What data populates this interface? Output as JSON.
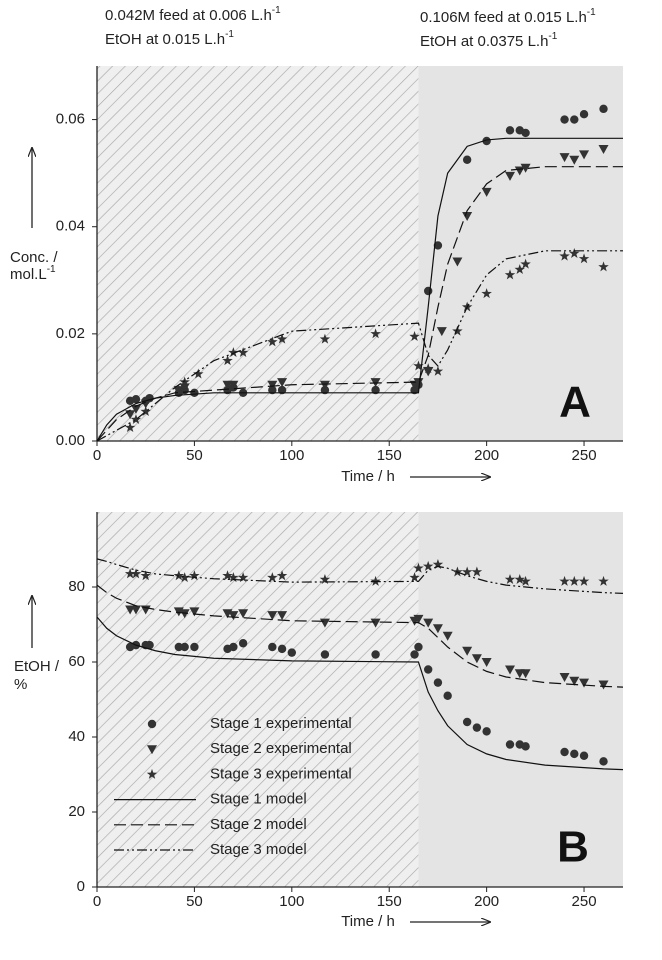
{
  "chart_data": [
    {
      "type": "scatter",
      "annotations": [
        [
          {
            "text": "0.042M feed at 0.006 L.h",
            "sup": "-1"
          },
          {
            "text": "EtOH at 0.015 L.h",
            "sup": "-1"
          }
        ],
        [
          {
            "text": "0.106M feed at 0.015 L.h",
            "sup": "-1"
          },
          {
            "text": "EtOH at 0.0375 L.h",
            "sup": "-1"
          }
        ]
      ],
      "panel_label": "A",
      "xlabel": "Time / h",
      "ylabel": [
        {
          "text": "Conc. /"
        },
        {
          "text": "mol.L",
          "sup": "-1"
        }
      ],
      "xlim": [
        0,
        270
      ],
      "xticks": [
        0,
        50,
        100,
        150,
        200,
        250
      ],
      "ylim": [
        0,
        0.07
      ],
      "yticks": [
        {
          "value": 0,
          "label": "0.00"
        },
        0.02,
        0.04,
        0.06
      ],
      "shaded_regions": [
        {
          "xlim": [
            0,
            165
          ],
          "pattern": "hatch"
        },
        {
          "xlim": [
            165,
            270
          ],
          "pattern": "gray"
        }
      ],
      "series": [
        {
          "kind": "scatter",
          "marker": "circle",
          "color": "#333333",
          "x": [
            17,
            20,
            25,
            27,
            42,
            45,
            50,
            67,
            70,
            75,
            90,
            95,
            117,
            143,
            163,
            165,
            170,
            175,
            190,
            200,
            212,
            217,
            220,
            240,
            245,
            250,
            260
          ],
          "values": [
            0.0075,
            0.0078,
            0.0075,
            0.008,
            0.009,
            0.0095,
            0.009,
            0.0095,
            0.01,
            0.009,
            0.0095,
            0.0095,
            0.0095,
            0.0095,
            0.0095,
            0.0105,
            0.028,
            0.0365,
            0.0525,
            0.056,
            0.058,
            0.058,
            0.0575,
            0.06,
            0.06,
            0.061,
            0.062
          ]
        },
        {
          "kind": "scatter",
          "marker": "triangle",
          "color": "#333333",
          "x": [
            17,
            20,
            25,
            42,
            45,
            67,
            70,
            90,
            95,
            117,
            143,
            163,
            165,
            170,
            177,
            185,
            190,
            200,
            212,
            217,
            220,
            240,
            245,
            250,
            260
          ],
          "values": [
            0.005,
            0.006,
            0.007,
            0.0095,
            0.01,
            0.0105,
            0.0105,
            0.0105,
            0.011,
            0.0105,
            0.011,
            0.0105,
            0.011,
            0.013,
            0.0205,
            0.0335,
            0.042,
            0.0465,
            0.0495,
            0.0505,
            0.051,
            0.053,
            0.0525,
            0.0535,
            0.0545
          ]
        },
        {
          "kind": "scatter",
          "marker": "star",
          "color": "#333333",
          "x": [
            17,
            20,
            25,
            42,
            45,
            52,
            67,
            70,
            75,
            90,
            95,
            117,
            143,
            163,
            165,
            170,
            175,
            185,
            190,
            200,
            212,
            217,
            220,
            240,
            245,
            250,
            260
          ],
          "values": [
            0.0025,
            0.004,
            0.0055,
            0.0095,
            0.011,
            0.0125,
            0.015,
            0.0165,
            0.0165,
            0.0185,
            0.019,
            0.019,
            0.02,
            0.0195,
            0.014,
            0.0135,
            0.013,
            0.0205,
            0.025,
            0.0275,
            0.031,
            0.032,
            0.033,
            0.0345,
            0.035,
            0.034,
            0.0325
          ]
        },
        {
          "kind": "line",
          "dash": "solid",
          "color": "#111111",
          "x": [
            0,
            5,
            10,
            20,
            30,
            40,
            60,
            100,
            165,
            170,
            175,
            180,
            190,
            200,
            210,
            230,
            260,
            270
          ],
          "values": [
            0,
            0.003,
            0.005,
            0.007,
            0.008,
            0.0085,
            0.009,
            0.009,
            0.009,
            0.025,
            0.042,
            0.05,
            0.055,
            0.0562,
            0.0565,
            0.0565,
            0.0565,
            0.0565
          ]
        },
        {
          "kind": "line",
          "dash": "dashed",
          "color": "#111111",
          "x": [
            0,
            5,
            10,
            20,
            30,
            40,
            60,
            100,
            165,
            170,
            175,
            180,
            190,
            200,
            210,
            230,
            260,
            270
          ],
          "values": [
            0,
            0.002,
            0.004,
            0.0065,
            0.008,
            0.009,
            0.0095,
            0.0105,
            0.011,
            0.016,
            0.025,
            0.033,
            0.043,
            0.048,
            0.0505,
            0.0512,
            0.0512,
            0.0512
          ]
        },
        {
          "kind": "line",
          "dash": "dashdotdot",
          "color": "#111111",
          "x": [
            0,
            5,
            10,
            20,
            30,
            40,
            60,
            100,
            165,
            170,
            175,
            180,
            190,
            200,
            210,
            230,
            260,
            270
          ],
          "values": [
            0,
            0.001,
            0.002,
            0.004,
            0.007,
            0.01,
            0.015,
            0.0205,
            0.022,
            0.016,
            0.014,
            0.017,
            0.025,
            0.031,
            0.034,
            0.0355,
            0.0355,
            0.0355
          ]
        }
      ]
    },
    {
      "type": "scatter",
      "panel_label": "B",
      "xlabel": "Time / h",
      "ylabel": [
        {
          "text": "EtOH /"
        },
        {
          "text": "%"
        }
      ],
      "xlim": [
        0,
        270
      ],
      "xticks": [
        0,
        50,
        100,
        150,
        200,
        250
      ],
      "ylim": [
        0,
        100
      ],
      "yticks": [
        0,
        20,
        40,
        60,
        80
      ],
      "shaded_regions": [
        {
          "xlim": [
            0,
            165
          ],
          "pattern": "hatch"
        },
        {
          "xlim": [
            165,
            270
          ],
          "pattern": "gray"
        }
      ],
      "legend": "lower left",
      "series": [
        {
          "name": "Stage 1 experimental",
          "kind": "scatter",
          "marker": "circle",
          "color": "#333333",
          "x": [
            17,
            20,
            25,
            27,
            42,
            45,
            50,
            67,
            70,
            75,
            90,
            95,
            100,
            117,
            143,
            163,
            165,
            170,
            175,
            180,
            190,
            195,
            200,
            212,
            217,
            220,
            240,
            245,
            250,
            260
          ],
          "values": [
            64,
            64.5,
            64.5,
            64.5,
            64,
            64,
            64,
            63.5,
            64,
            65,
            64,
            63.5,
            62.5,
            62,
            62,
            62,
            64,
            58,
            54.5,
            51,
            44,
            42.5,
            41.5,
            38,
            38,
            37.5,
            36,
            35.5,
            35,
            33.5
          ]
        },
        {
          "name": "Stage 2 experimental",
          "kind": "scatter",
          "marker": "triangle",
          "color": "#333333",
          "x": [
            17,
            20,
            25,
            42,
            45,
            50,
            67,
            70,
            75,
            90,
            95,
            117,
            143,
            163,
            165,
            170,
            175,
            180,
            190,
            195,
            200,
            212,
            217,
            220,
            240,
            245,
            250,
            260
          ],
          "values": [
            74,
            74,
            74,
            73.5,
            73,
            73.5,
            73,
            72.5,
            73,
            72.5,
            72.5,
            70.5,
            70.5,
            71,
            71.5,
            70.5,
            69,
            67,
            63,
            61,
            60,
            58,
            57,
            57,
            56,
            55,
            54.5,
            54
          ]
        },
        {
          "name": "Stage 3 experimental",
          "kind": "scatter",
          "marker": "star",
          "color": "#333333",
          "x": [
            17,
            20,
            25,
            42,
            45,
            50,
            67,
            70,
            75,
            90,
            95,
            117,
            143,
            163,
            165,
            170,
            175,
            185,
            190,
            195,
            212,
            217,
            220,
            240,
            245,
            250,
            260
          ],
          "values": [
            83.5,
            83.5,
            83,
            83,
            82.5,
            83,
            83,
            82.5,
            82.5,
            82.5,
            83,
            82,
            81.5,
            82.5,
            85,
            85.5,
            86,
            84,
            84,
            84,
            82,
            82,
            81.5,
            81.5,
            81.5,
            81.5,
            81.5
          ]
        },
        {
          "name": "Stage 1 model",
          "kind": "line",
          "dash": "solid",
          "color": "#111111",
          "x": [
            0,
            5,
            10,
            20,
            30,
            40,
            60,
            100,
            165,
            170,
            175,
            180,
            190,
            200,
            210,
            230,
            260,
            270
          ],
          "values": [
            72,
            69,
            67,
            64.5,
            63,
            62,
            61,
            60.3,
            60,
            52,
            47,
            43,
            38,
            35.5,
            34,
            32.5,
            31.5,
            31.3
          ]
        },
        {
          "name": "Stage 2 model",
          "kind": "line",
          "dash": "dashed",
          "color": "#111111",
          "x": [
            0,
            5,
            10,
            20,
            30,
            40,
            60,
            100,
            165,
            170,
            175,
            180,
            190,
            200,
            210,
            230,
            260,
            270
          ],
          "values": [
            80.5,
            78.5,
            77,
            75,
            74,
            73.3,
            72.3,
            71,
            70.5,
            69,
            66.5,
            64,
            60,
            57.5,
            56,
            54.5,
            53.5,
            53.3
          ]
        },
        {
          "name": "Stage 3 model",
          "kind": "line",
          "dash": "dashdotdot",
          "color": "#111111",
          "x": [
            0,
            5,
            10,
            20,
            30,
            40,
            60,
            100,
            165,
            170,
            175,
            180,
            190,
            200,
            210,
            230,
            260,
            270
          ],
          "values": [
            87.5,
            86.8,
            86,
            84.5,
            83.5,
            83,
            82.2,
            81.3,
            81.5,
            84.5,
            85.5,
            85,
            83,
            81.5,
            80.5,
            79.5,
            78.5,
            78.3
          ]
        }
      ]
    }
  ]
}
